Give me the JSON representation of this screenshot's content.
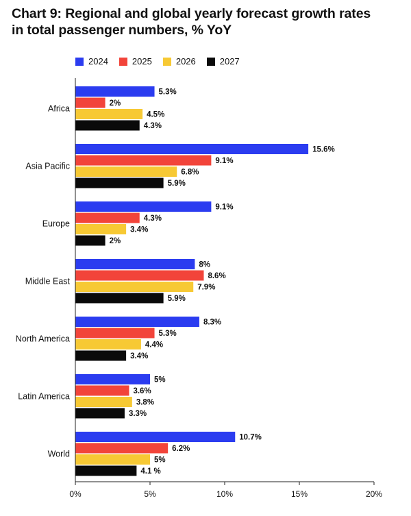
{
  "title": {
    "line1": "Chart 9: Regional and global yearly forecast growth rates",
    "line2": "in total passenger numbers, % YoY"
  },
  "colors": {
    "2024": "#2b3cf0",
    "2025": "#f2443a",
    "2026": "#f7c934",
    "2027": "#0a0a0a",
    "axis": "#222222"
  },
  "chart_data": {
    "type": "bar",
    "orientation": "horizontal",
    "categories": [
      "Africa",
      "Asia Pacific",
      "Europe",
      "Middle East",
      "North America",
      "Latin America",
      "World"
    ],
    "series": [
      {
        "name": "2024",
        "values": [
          5.3,
          15.6,
          9.1,
          8,
          8.3,
          5,
          10.7
        ],
        "labels": [
          "5.3%",
          "15.6%",
          "9.1%",
          "8%",
          "8.3%",
          "5%",
          "10.7%"
        ]
      },
      {
        "name": "2025",
        "values": [
          2,
          9.1,
          4.3,
          8.6,
          5.3,
          3.6,
          6.2
        ],
        "labels": [
          "2%",
          "9.1%",
          "4.3%",
          "8.6%",
          "5.3%",
          "3.6%",
          "6.2%"
        ]
      },
      {
        "name": "2026",
        "values": [
          4.5,
          6.8,
          3.4,
          7.9,
          4.4,
          3.8,
          5
        ],
        "labels": [
          "4.5%",
          "6.8%",
          "3.4%",
          "7.9%",
          "4.4%",
          "3.8%",
          "5%"
        ]
      },
      {
        "name": "2027",
        "values": [
          4.3,
          5.9,
          2,
          5.9,
          3.4,
          3.3,
          4.1
        ],
        "labels": [
          "4.3%",
          "5.9%",
          "2%",
          "5.9%",
          "3.4%",
          "3.3%",
          "4.1 %"
        ]
      }
    ],
    "xlim": [
      0,
      20
    ],
    "xticks": [
      0,
      5,
      10,
      15,
      20
    ],
    "xtick_labels": [
      "0%",
      "5%",
      "10%",
      "15%",
      "20%"
    ],
    "grid": false,
    "legend_position": "top-left"
  }
}
